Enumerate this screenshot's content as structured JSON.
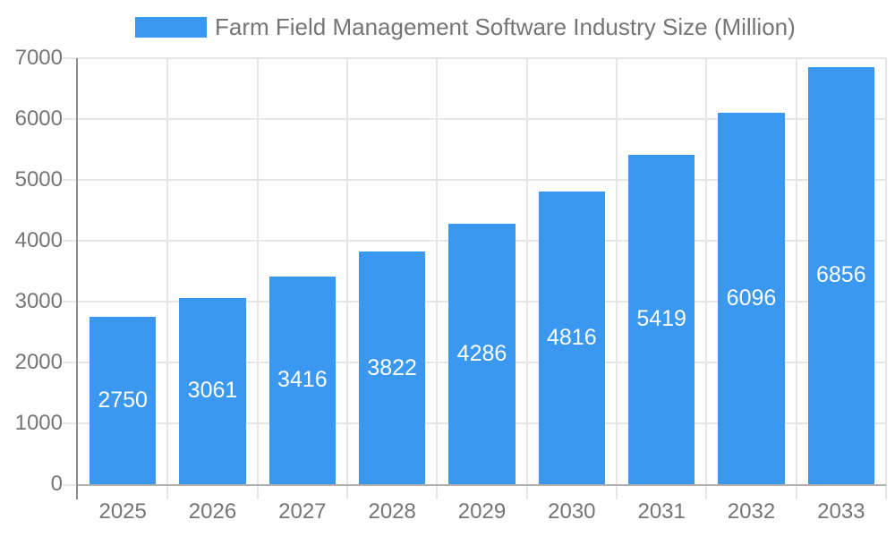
{
  "chart_data": {
    "type": "bar",
    "title": "Farm Field Management Software Industry Size (Million)",
    "legend": {
      "position": "top",
      "label": "Farm Field Management Software Industry Size (Million)"
    },
    "categories": [
      "2025",
      "2026",
      "2027",
      "2028",
      "2029",
      "2030",
      "2031",
      "2032",
      "2033"
    ],
    "series": [
      {
        "name": "Farm Field Management Software Industry Size (Million)",
        "values": [
          2750,
          3061,
          3416,
          3822,
          4286,
          4816,
          5419,
          6096,
          6856
        ]
      }
    ],
    "xlabel": "",
    "ylabel": "",
    "ylim": [
      0,
      7000
    ],
    "y_ticks": [
      0,
      1000,
      2000,
      3000,
      4000,
      5000,
      6000,
      7000
    ],
    "grid": true,
    "bar_value_labels": "inside-centered",
    "colors": {
      "bar": "#3B98F0",
      "bar_label": "#FFFFFF",
      "axis_text": "#757575",
      "grid_line": "#E6E6E6",
      "axis_line": "#8C8C8C",
      "baseline": "#B0B0B0",
      "background": "#FFFFFF"
    }
  }
}
